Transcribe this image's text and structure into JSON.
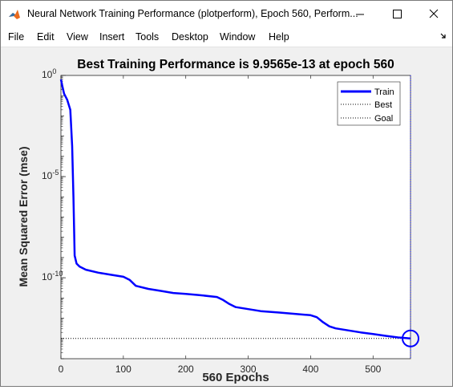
{
  "window": {
    "title": "Neural Network Training Performance (plotperform), Epoch 560, Perform...",
    "controls": [
      "minimize",
      "maximize",
      "close"
    ]
  },
  "menu": {
    "items": [
      "File",
      "Edit",
      "View",
      "Insert",
      "Tools",
      "Desktop",
      "Window",
      "Help"
    ]
  },
  "icons": {
    "app": "matlab-icon",
    "minimize": "minimize-icon",
    "maximize": "maximize-icon",
    "close": "close-icon",
    "dock": "dock-arrow-icon"
  },
  "colors": {
    "train": "#0000ff",
    "best_goal": "#000000",
    "best_marker": "#0000ff"
  },
  "chart_data": {
    "type": "line",
    "title": "Best Training Performance is 9.9565e-13 at epoch 560",
    "xlabel": "560 Epochs",
    "ylabel": "Mean Squared Error  (mse)",
    "yscale": "log",
    "xlim": [
      0,
      560
    ],
    "ylim_exponent": [
      -14,
      0
    ],
    "x_ticks": [
      "0",
      "100",
      "200",
      "300",
      "400",
      "500"
    ],
    "y_ticks": [
      {
        "base": "10",
        "exp": "0"
      },
      {
        "base": "10",
        "exp": "-5"
      },
      {
        "base": "10",
        "exp": "-10"
      }
    ],
    "legend": {
      "position": "top-right",
      "entries": [
        {
          "label": "Train",
          "style": "solid"
        },
        {
          "label": "Best",
          "style": "dotted"
        },
        {
          "label": "Goal",
          "style": "dotted"
        }
      ]
    },
    "series": [
      {
        "name": "Train",
        "x": [
          0,
          2,
          5,
          10,
          15,
          18,
          20,
          22,
          25,
          30,
          40,
          60,
          80,
          100,
          110,
          120,
          140,
          160,
          180,
          200,
          220,
          250,
          260,
          270,
          280,
          300,
          320,
          350,
          380,
          400,
          410,
          420,
          430,
          440,
          460,
          480,
          500,
          520,
          540,
          560
        ],
        "y_log10": [
          -0.2,
          -0.5,
          -0.9,
          -1.2,
          -1.7,
          -3.5,
          -6.0,
          -8.9,
          -9.3,
          -9.45,
          -9.6,
          -9.75,
          -9.85,
          -9.95,
          -10.1,
          -10.4,
          -10.55,
          -10.65,
          -10.75,
          -10.8,
          -10.85,
          -10.95,
          -11.1,
          -11.3,
          -11.45,
          -11.55,
          -11.65,
          -11.72,
          -11.8,
          -11.85,
          -11.95,
          -12.2,
          -12.4,
          -12.5,
          -12.6,
          -12.7,
          -12.78,
          -12.87,
          -12.95,
          -13.0
        ]
      }
    ],
    "best": {
      "epoch": 560,
      "value": "9.9565e-13",
      "log10": -13.0
    },
    "goal": {
      "log10": -13.0
    }
  }
}
